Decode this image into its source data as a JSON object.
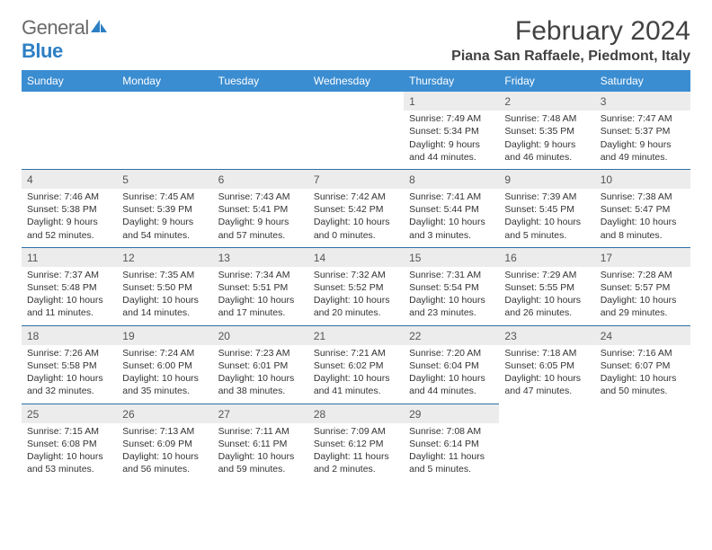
{
  "brand": {
    "part1": "General",
    "part2": "Blue"
  },
  "title": "February 2024",
  "location": "Piana San Raffaele, Piedmont, Italy",
  "colors": {
    "header_bg": "#3b8dd1",
    "header_text": "#ffffff",
    "daynum_bg": "#ececec",
    "row_border": "#2d6fa8",
    "body_text": "#333333",
    "brand_gray": "#6a6a6a",
    "brand_blue": "#2d7fc4"
  },
  "weekdays": [
    "Sunday",
    "Monday",
    "Tuesday",
    "Wednesday",
    "Thursday",
    "Friday",
    "Saturday"
  ],
  "weeks": [
    [
      null,
      null,
      null,
      null,
      {
        "n": "1",
        "sr": "7:49 AM",
        "ss": "5:34 PM",
        "dl": "9 hours and 44 minutes."
      },
      {
        "n": "2",
        "sr": "7:48 AM",
        "ss": "5:35 PM",
        "dl": "9 hours and 46 minutes."
      },
      {
        "n": "3",
        "sr": "7:47 AM",
        "ss": "5:37 PM",
        "dl": "9 hours and 49 minutes."
      }
    ],
    [
      {
        "n": "4",
        "sr": "7:46 AM",
        "ss": "5:38 PM",
        "dl": "9 hours and 52 minutes."
      },
      {
        "n": "5",
        "sr": "7:45 AM",
        "ss": "5:39 PM",
        "dl": "9 hours and 54 minutes."
      },
      {
        "n": "6",
        "sr": "7:43 AM",
        "ss": "5:41 PM",
        "dl": "9 hours and 57 minutes."
      },
      {
        "n": "7",
        "sr": "7:42 AM",
        "ss": "5:42 PM",
        "dl": "10 hours and 0 minutes."
      },
      {
        "n": "8",
        "sr": "7:41 AM",
        "ss": "5:44 PM",
        "dl": "10 hours and 3 minutes."
      },
      {
        "n": "9",
        "sr": "7:39 AM",
        "ss": "5:45 PM",
        "dl": "10 hours and 5 minutes."
      },
      {
        "n": "10",
        "sr": "7:38 AM",
        "ss": "5:47 PM",
        "dl": "10 hours and 8 minutes."
      }
    ],
    [
      {
        "n": "11",
        "sr": "7:37 AM",
        "ss": "5:48 PM",
        "dl": "10 hours and 11 minutes."
      },
      {
        "n": "12",
        "sr": "7:35 AM",
        "ss": "5:50 PM",
        "dl": "10 hours and 14 minutes."
      },
      {
        "n": "13",
        "sr": "7:34 AM",
        "ss": "5:51 PM",
        "dl": "10 hours and 17 minutes."
      },
      {
        "n": "14",
        "sr": "7:32 AM",
        "ss": "5:52 PM",
        "dl": "10 hours and 20 minutes."
      },
      {
        "n": "15",
        "sr": "7:31 AM",
        "ss": "5:54 PM",
        "dl": "10 hours and 23 minutes."
      },
      {
        "n": "16",
        "sr": "7:29 AM",
        "ss": "5:55 PM",
        "dl": "10 hours and 26 minutes."
      },
      {
        "n": "17",
        "sr": "7:28 AM",
        "ss": "5:57 PM",
        "dl": "10 hours and 29 minutes."
      }
    ],
    [
      {
        "n": "18",
        "sr": "7:26 AM",
        "ss": "5:58 PM",
        "dl": "10 hours and 32 minutes."
      },
      {
        "n": "19",
        "sr": "7:24 AM",
        "ss": "6:00 PM",
        "dl": "10 hours and 35 minutes."
      },
      {
        "n": "20",
        "sr": "7:23 AM",
        "ss": "6:01 PM",
        "dl": "10 hours and 38 minutes."
      },
      {
        "n": "21",
        "sr": "7:21 AM",
        "ss": "6:02 PM",
        "dl": "10 hours and 41 minutes."
      },
      {
        "n": "22",
        "sr": "7:20 AM",
        "ss": "6:04 PM",
        "dl": "10 hours and 44 minutes."
      },
      {
        "n": "23",
        "sr": "7:18 AM",
        "ss": "6:05 PM",
        "dl": "10 hours and 47 minutes."
      },
      {
        "n": "24",
        "sr": "7:16 AM",
        "ss": "6:07 PM",
        "dl": "10 hours and 50 minutes."
      }
    ],
    [
      {
        "n": "25",
        "sr": "7:15 AM",
        "ss": "6:08 PM",
        "dl": "10 hours and 53 minutes."
      },
      {
        "n": "26",
        "sr": "7:13 AM",
        "ss": "6:09 PM",
        "dl": "10 hours and 56 minutes."
      },
      {
        "n": "27",
        "sr": "7:11 AM",
        "ss": "6:11 PM",
        "dl": "10 hours and 59 minutes."
      },
      {
        "n": "28",
        "sr": "7:09 AM",
        "ss": "6:12 PM",
        "dl": "11 hours and 2 minutes."
      },
      {
        "n": "29",
        "sr": "7:08 AM",
        "ss": "6:14 PM",
        "dl": "11 hours and 5 minutes."
      },
      null,
      null
    ]
  ],
  "labels": {
    "sunrise": "Sunrise: ",
    "sunset": "Sunset: ",
    "daylight": "Daylight: "
  }
}
